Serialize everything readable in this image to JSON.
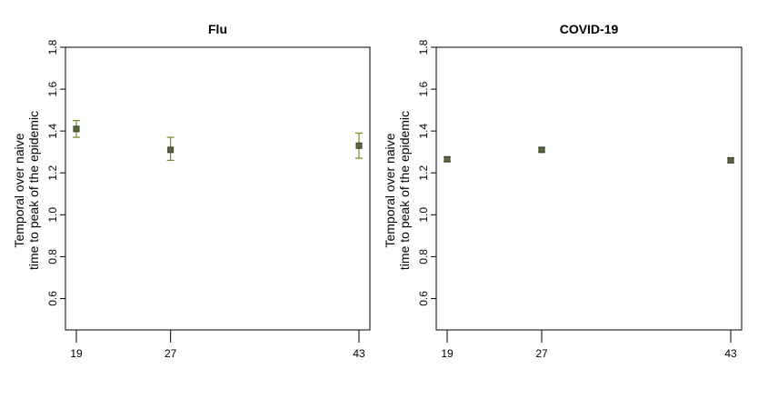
{
  "chart_data": [
    {
      "type": "scatter",
      "title": "Flu",
      "ylabel_lines": [
        "Temporal over naive",
        "time to peak of the epidemic"
      ],
      "xlabel": "",
      "x_ticks": [
        "19",
        "27",
        "43"
      ],
      "y_ticks": [
        "0.6",
        "0.8",
        "1.0",
        "1.2",
        "1.4",
        "1.6",
        "1.8"
      ],
      "ylim": [
        0.45,
        1.8
      ],
      "grid": false,
      "legend": "none",
      "points": [
        {
          "x": "19",
          "y": 1.41,
          "lower": 1.37,
          "upper": 1.45
        },
        {
          "x": "27",
          "y": 1.31,
          "lower": 1.26,
          "upper": 1.37
        },
        {
          "x": "43",
          "y": 1.33,
          "lower": 1.27,
          "upper": 1.39
        }
      ]
    },
    {
      "type": "scatter",
      "title": "COVID-19",
      "ylabel_lines": [
        "Temporal over naive",
        "time to peak of the epidemic"
      ],
      "xlabel": "",
      "x_ticks": [
        "19",
        "27",
        "43"
      ],
      "y_ticks": [
        "0.6",
        "0.8",
        "1.0",
        "1.2",
        "1.4",
        "1.6",
        "1.8"
      ],
      "ylim": [
        0.45,
        1.8
      ],
      "grid": false,
      "legend": "none",
      "points": [
        {
          "x": "19",
          "y": 1.265,
          "lower": 1.255,
          "upper": 1.275
        },
        {
          "x": "27",
          "y": 1.31,
          "lower": 1.3,
          "upper": 1.32
        },
        {
          "x": "43",
          "y": 1.26,
          "lower": 1.25,
          "upper": 1.27
        }
      ]
    }
  ],
  "colors": {
    "marker_fill": "#556b2f",
    "marker_edge": "#3a3a3a",
    "errorbar": "#6b8e23",
    "axis": "#000000"
  }
}
